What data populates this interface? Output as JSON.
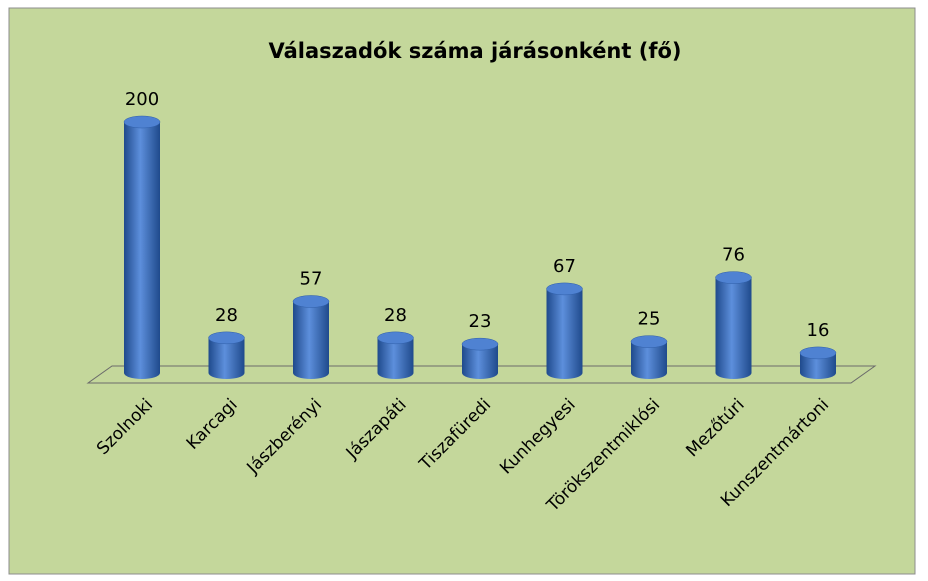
{
  "chart_data": {
    "type": "bar3d",
    "title": "Válaszadók száma járásonként (fő)",
    "categories": [
      "Szolnoki",
      "Karcagi",
      "Jászberényi",
      "Jászapáti",
      "Tiszafüredi",
      "Kunhegyesi",
      "Törökszentmiklósi",
      "Mezőtúri",
      "Kunszentmártoni"
    ],
    "values": [
      200,
      28,
      57,
      28,
      23,
      67,
      25,
      76,
      16
    ],
    "color": "#3a6fc4",
    "background": "#c4d79b"
  }
}
